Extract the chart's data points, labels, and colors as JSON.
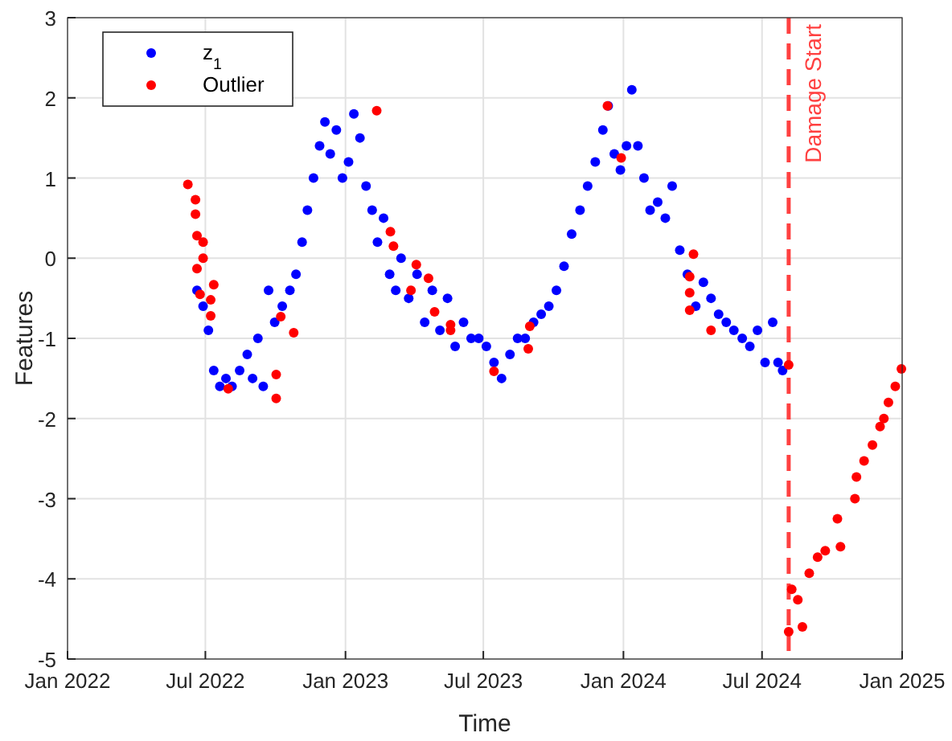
{
  "chart_data": {
    "type": "scatter",
    "xlabel": "Time",
    "ylabel": "Features",
    "xlim": [
      "2022-01-01",
      "2025-01-01"
    ],
    "xticks": [
      {
        "value": "2022-01-01",
        "label": "Jan 2022"
      },
      {
        "value": "2022-07-01",
        "label": "Jul 2022"
      },
      {
        "value": "2023-01-01",
        "label": "Jan 2023"
      },
      {
        "value": "2023-07-01",
        "label": "Jul 2023"
      },
      {
        "value": "2024-01-01",
        "label": "Jan 2024"
      },
      {
        "value": "2024-07-01",
        "label": "Jul 2024"
      },
      {
        "value": "2025-01-01",
        "label": "Jan 2025"
      }
    ],
    "ylim": [
      -5,
      3
    ],
    "yticks": [
      -5,
      -4,
      -3,
      -2,
      -1,
      0,
      1,
      2,
      3
    ],
    "grid": true,
    "legend": "top left",
    "marker": "circle",
    "ref_lines": [
      {
        "axis": "x",
        "value": "2024-08-05",
        "label": "Damage Start",
        "color": "#ff4040",
        "line_style": "dashed"
      }
    ],
    "series": [
      {
        "name": "z$_{1}$",
        "color": "#0000ff",
        "x": [
          "2022-06-20",
          "2022-06-28",
          "2022-07-05",
          "2022-07-12",
          "2022-07-20",
          "2022-07-28",
          "2022-08-05",
          "2022-08-15",
          "2022-08-25",
          "2022-09-01",
          "2022-09-08",
          "2022-09-15",
          "2022-09-22",
          "2022-09-30",
          "2022-10-10",
          "2022-10-20",
          "2022-10-28",
          "2022-11-05",
          "2022-11-12",
          "2022-11-20",
          "2022-11-28",
          "2022-12-05",
          "2022-12-12",
          "2022-12-20",
          "2022-12-28",
          "2023-01-05",
          "2023-01-12",
          "2023-01-20",
          "2023-01-28",
          "2023-02-05",
          "2023-02-12",
          "2023-02-20",
          "2023-02-28",
          "2023-03-08",
          "2023-03-15",
          "2023-03-25",
          "2023-04-05",
          "2023-04-15",
          "2023-04-25",
          "2023-05-05",
          "2023-05-15",
          "2023-05-25",
          "2023-06-05",
          "2023-06-15",
          "2023-06-25",
          "2023-07-05",
          "2023-07-15",
          "2023-07-25",
          "2023-08-05",
          "2023-08-15",
          "2023-08-25",
          "2023-09-05",
          "2023-09-15",
          "2023-09-25",
          "2023-10-05",
          "2023-10-15",
          "2023-10-25",
          "2023-11-05",
          "2023-11-15",
          "2023-11-25",
          "2023-12-05",
          "2023-12-12",
          "2023-12-20",
          "2023-12-28",
          "2024-01-05",
          "2024-01-12",
          "2024-01-20",
          "2024-01-28",
          "2024-02-05",
          "2024-02-15",
          "2024-02-25",
          "2024-03-05",
          "2024-03-15",
          "2024-03-25",
          "2024-04-05",
          "2024-04-15",
          "2024-04-25",
          "2024-05-05",
          "2024-05-15",
          "2024-05-25",
          "2024-06-05",
          "2024-06-15",
          "2024-06-25",
          "2024-07-05",
          "2024-07-15",
          "2024-07-22",
          "2024-07-28"
        ],
        "values": [
          -0.4,
          -0.6,
          -0.9,
          -1.4,
          -1.6,
          -1.5,
          -1.6,
          -1.4,
          -1.2,
          -1.5,
          -1.0,
          -1.6,
          -0.4,
          -0.8,
          -0.6,
          -0.4,
          -0.2,
          0.2,
          0.6,
          1.0,
          1.4,
          1.7,
          1.3,
          1.6,
          1.0,
          1.2,
          1.8,
          1.5,
          0.9,
          0.6,
          0.2,
          0.5,
          -0.2,
          -0.4,
          0.0,
          -0.5,
          -0.2,
          -0.8,
          -0.4,
          -0.9,
          -0.5,
          -1.1,
          -0.8,
          -1.0,
          -1.0,
          -1.1,
          -1.3,
          -1.5,
          -1.2,
          -1.0,
          -1.0,
          -0.8,
          -0.7,
          -0.6,
          -0.4,
          -0.1,
          0.3,
          0.6,
          0.9,
          1.2,
          1.6,
          1.9,
          1.3,
          1.1,
          1.4,
          2.1,
          1.4,
          1.0,
          0.6,
          0.7,
          0.5,
          0.9,
          0.1,
          -0.2,
          -0.6,
          -0.3,
          -0.5,
          -0.7,
          -0.8,
          -0.9,
          -1.0,
          -1.1,
          -0.9,
          -1.3,
          -0.8,
          -1.3,
          -1.4
        ]
      },
      {
        "name": "Outlier",
        "color": "#ff0000",
        "x": [
          "2022-06-08",
          "2022-06-18",
          "2022-06-18",
          "2022-06-20",
          "2022-06-20",
          "2022-06-28",
          "2022-06-28",
          "2022-06-24",
          "2022-07-08",
          "2022-07-08",
          "2022-07-12",
          "2022-07-31",
          "2022-10-02",
          "2022-10-02",
          "2022-10-08",
          "2022-10-25",
          "2023-02-11",
          "2023-03-01",
          "2023-03-05",
          "2023-04-04",
          "2023-03-28",
          "2023-04-20",
          "2023-04-28",
          "2023-05-19",
          "2023-05-19",
          "2023-07-15",
          "2023-08-31",
          "2023-08-29",
          "2023-12-11",
          "2023-12-29",
          "2024-04-02",
          "2024-03-28",
          "2024-03-28",
          "2024-03-28",
          "2024-04-25",
          "2024-08-05",
          "2024-08-05",
          "2024-08-09",
          "2024-08-17",
          "2024-08-23",
          "2024-09-01",
          "2024-09-12",
          "2024-09-22",
          "2024-10-08",
          "2024-10-12",
          "2024-10-31",
          "2024-11-02",
          "2024-11-12",
          "2024-11-23",
          "2024-12-03",
          "2024-12-08",
          "2024-12-14",
          "2024-12-23",
          "2024-12-31"
        ],
        "values": [
          0.92,
          0.73,
          0.55,
          0.28,
          -0.13,
          0.2,
          0,
          -0.45,
          -0.52,
          -0.72,
          -0.33,
          -1.63,
          -1.75,
          -1.45,
          -0.73,
          -0.93,
          1.84,
          0.33,
          0.15,
          -0.08,
          -0.4,
          -0.25,
          -0.67,
          -0.83,
          -0.9,
          -1.41,
          -0.85,
          -1.13,
          1.9,
          1.25,
          0.05,
          -0.23,
          -0.43,
          -0.65,
          -0.9,
          -1.33,
          -4.66,
          -4.13,
          -4.26,
          -4.6,
          -3.93,
          -3.73,
          -3.65,
          -3.25,
          -3.6,
          -3.0,
          -2.73,
          -2.53,
          -2.33,
          -2.1,
          -2.0,
          -1.8,
          -1.6,
          -1.38
        ]
      }
    ]
  }
}
